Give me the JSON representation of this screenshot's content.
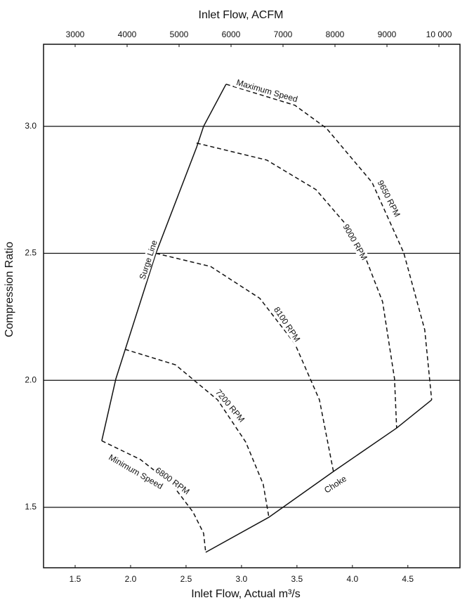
{
  "chart_data": {
    "type": "line",
    "x_label": "Inlet Flow, Actual m³/s",
    "x2_label": "Inlet Flow, ACFM",
    "y_label": "Compression Ratio",
    "xlim": [
      1.215,
      4.97
    ],
    "xticks": [
      1.5,
      {
        "value": 2,
        "label": "2.0"
      },
      2.5,
      {
        "value": 3,
        "label": "3.0"
      },
      3.5,
      {
        "value": 4,
        "label": "4.0"
      },
      4.5
    ],
    "x2lim": [
      2392,
      10405
    ],
    "x2ticks": [
      3000,
      4000,
      5000,
      6000,
      7000,
      8000,
      9000,
      {
        "value": 10000,
        "label": "10 000"
      }
    ],
    "ylim": [
      1.262,
      3.323
    ],
    "yticks": [
      1.5,
      {
        "value": 2,
        "label": "2.0"
      },
      2.5,
      {
        "value": 3,
        "label": "3.0"
      }
    ],
    "grid": true,
    "series": [
      {
        "labels": [
          "Surge Line"
        ],
        "style": "solid",
        "color": "#111111",
        "x": [
          1.74,
          1.867,
          2.228,
          2.595,
          2.658,
          2.861
        ],
        "values": [
          1.762,
          2.006,
          2.5,
          2.917,
          3.0,
          3.166
        ]
      },
      {
        "labels": [
          "Choke"
        ],
        "style": "solid",
        "color": "#111111",
        "x": [
          2.677,
          3.247,
          3.829,
          4.399,
          4.715
        ],
        "values": [
          1.323,
          1.461,
          1.641,
          1.812,
          1.923
        ]
      },
      {
        "labels": [
          "Maximum Speed",
          "9650 RPM"
        ],
        "style": "dashed",
        "color": "#111111",
        "x": [
          2.861,
          3.481,
          3.766,
          4.177,
          4.462,
          4.652,
          4.715
        ],
        "values": [
          3.166,
          3.083,
          2.992,
          2.779,
          2.503,
          2.199,
          1.923
        ]
      },
      {
        "labels": [
          "9000 RPM"
        ],
        "style": "dashed",
        "color": "#111111",
        "x": [
          2.595,
          3.228,
          3.671,
          4.051,
          4.272,
          4.38,
          4.399
        ],
        "values": [
          2.934,
          2.867,
          2.751,
          2.558,
          2.309,
          2.006,
          1.812
        ]
      },
      {
        "labels": [
          "8100 RPM"
        ],
        "style": "dashed",
        "color": "#111111",
        "x": [
          2.228,
          2.722,
          3.165,
          3.481,
          3.703,
          3.829
        ],
        "values": [
          2.5,
          2.448,
          2.323,
          2.144,
          1.923,
          1.641
        ]
      },
      {
        "labels": [
          "7200 RPM"
        ],
        "style": "dashed",
        "color": "#111111",
        "x": [
          1.949,
          2.405,
          2.785,
          3.038,
          3.196,
          3.247
        ],
        "values": [
          2.122,
          2.061,
          1.923,
          1.757,
          1.591,
          1.461
        ]
      },
      {
        "labels": [
          "Minimum Speed",
          "6800 RPM"
        ],
        "style": "dashed",
        "color": "#111111",
        "x": [
          1.74,
          2.089,
          2.373,
          2.563,
          2.658,
          2.677
        ],
        "values": [
          1.762,
          1.688,
          1.591,
          1.481,
          1.398,
          1.323
        ]
      }
    ]
  }
}
